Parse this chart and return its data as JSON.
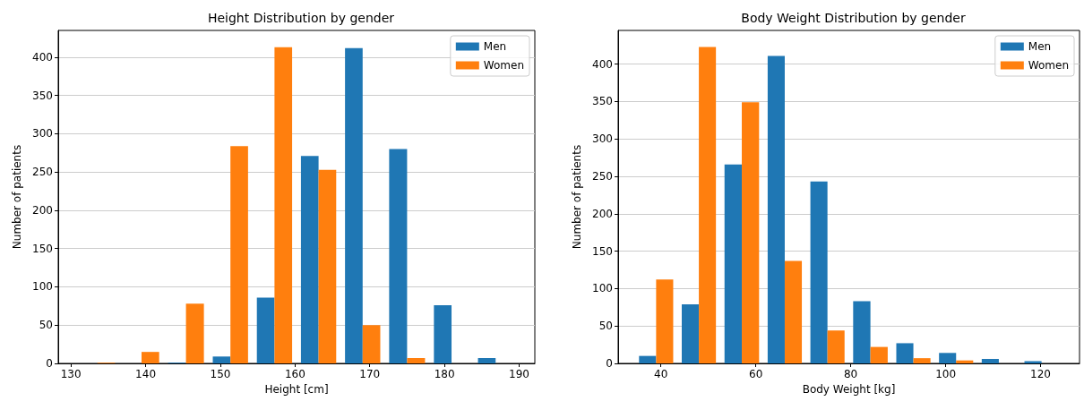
{
  "chart_data": [
    {
      "type": "histogram",
      "title": "Height Distribution by gender",
      "xlabel": "Height [cm]",
      "ylabel": "Number of patients",
      "bins": [
        130.6,
        136.5,
        142.4,
        148.4,
        154.3,
        160.2,
        166.1,
        172.0,
        178.0,
        183.9,
        189.8
      ],
      "series": [
        {
          "name": "Men",
          "color": "#1f77b4",
          "values": [
            0,
            0,
            1,
            9,
            86,
            271,
            412,
            280,
            76,
            7
          ]
        },
        {
          "name": "Women",
          "color": "#ff7f0e",
          "values": [
            1,
            15,
            78,
            284,
            413,
            253,
            50,
            7,
            0,
            0
          ]
        }
      ],
      "xlim": [
        128.3,
        192.1
      ],
      "xticks": [
        130,
        140,
        150,
        160,
        170,
        180,
        190
      ],
      "ylim": [
        0,
        435
      ],
      "yticks": [
        0,
        50,
        100,
        150,
        200,
        250,
        300,
        350,
        400
      ],
      "grid": "y",
      "legend": "top right"
    },
    {
      "type": "histogram",
      "title": "Body Weight Distribution by gender",
      "xlabel": "Body Weight [kg]",
      "ylabel": "Number of patients",
      "bins": [
        34.5,
        43.5,
        52.5,
        61.6,
        70.6,
        79.6,
        88.7,
        97.7,
        106.7,
        115.7,
        124.7
      ],
      "series": [
        {
          "name": "Men",
          "color": "#1f77b4",
          "values": [
            10,
            79,
            266,
            411,
            243,
            83,
            27,
            14,
            6,
            3
          ]
        },
        {
          "name": "Women",
          "color": "#ff7f0e",
          "values": [
            112,
            423,
            349,
            137,
            44,
            22,
            7,
            4,
            0,
            0
          ]
        }
      ],
      "xlim": [
        31.0,
        128.2
      ],
      "xticks": [
        40,
        60,
        80,
        100,
        120
      ],
      "ylim": [
        0,
        445
      ],
      "yticks": [
        0,
        50,
        100,
        150,
        200,
        250,
        300,
        350,
        400
      ],
      "grid": "y",
      "legend": "top right"
    }
  ]
}
